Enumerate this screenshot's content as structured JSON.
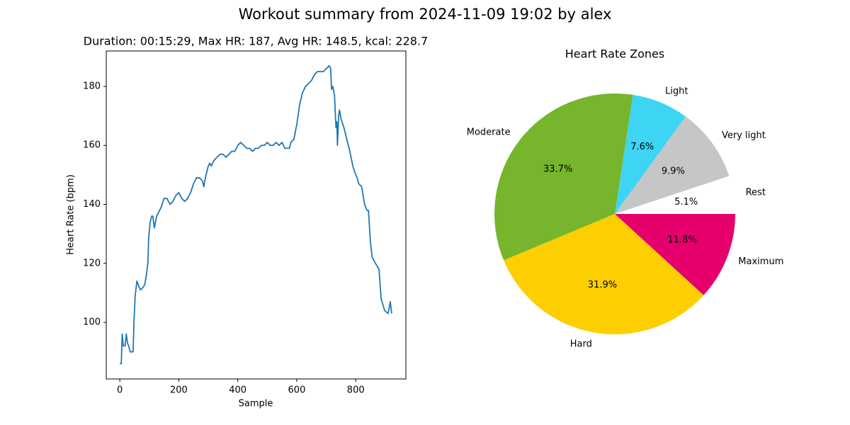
{
  "title": "Workout summary from 2024-11-09 19:02 by alex",
  "chart_data": [
    {
      "type": "line",
      "title": "Duration: 00:15:29, Max HR: 187, Avg HR: 148.5, kcal: 228.7",
      "x_label": "Sample",
      "y_label": "Heart Rate (bpm)",
      "color": "#1f77b4",
      "x": [
        0,
        5,
        8,
        12,
        18,
        22,
        26,
        30,
        35,
        45,
        48,
        52,
        58,
        65,
        70,
        80,
        85,
        90,
        95,
        98,
        103,
        108,
        112,
        117,
        125,
        135,
        140,
        150,
        160,
        170,
        180,
        190,
        200,
        210,
        220,
        230,
        240,
        250,
        260,
        270,
        280,
        285,
        290,
        300,
        305,
        310,
        320,
        330,
        340,
        350,
        360,
        370,
        380,
        390,
        400,
        410,
        420,
        430,
        440,
        450,
        460,
        470,
        480,
        490,
        500,
        510,
        520,
        530,
        540,
        550,
        560,
        575,
        580,
        590,
        600,
        610,
        620,
        630,
        640,
        650,
        660,
        670,
        680,
        690,
        700,
        710,
        715,
        718,
        722,
        728,
        733,
        736,
        738,
        742,
        745,
        750,
        760,
        770,
        780,
        790,
        800,
        805,
        810,
        820,
        825,
        830,
        838,
        843,
        850,
        856,
        867,
        879,
        886,
        898,
        910,
        917,
        922
      ],
      "values": [
        86,
        86,
        96,
        92,
        92,
        96,
        93,
        92,
        90,
        90,
        100,
        109,
        114,
        112,
        111,
        112,
        113,
        116,
        120,
        129,
        134,
        136,
        136,
        132,
        136,
        138,
        139,
        142,
        142,
        140,
        141,
        143,
        144,
        142,
        141,
        142,
        144,
        147,
        149,
        149,
        148,
        146,
        149,
        153,
        154,
        153,
        155,
        156,
        157,
        157,
        156,
        157,
        158,
        158,
        160,
        161,
        160,
        159,
        159,
        158,
        159,
        159,
        160,
        160,
        161,
        160,
        160,
        161,
        160,
        161,
        159,
        159,
        161,
        162,
        167,
        174,
        178,
        180,
        181,
        182,
        184,
        185,
        185,
        185,
        186,
        187,
        186,
        179,
        180,
        177,
        166,
        168,
        160,
        170,
        172,
        169,
        166,
        162,
        158,
        153,
        150,
        149,
        147,
        146,
        143,
        140,
        138,
        138,
        127,
        122,
        120,
        118,
        108,
        104,
        103,
        107,
        103
      ],
      "xlim": [
        -46,
        970
      ],
      "ylim": [
        80.8,
        192
      ],
      "xticks": [
        0,
        200,
        400,
        600,
        800
      ],
      "yticks": [
        100,
        120,
        140,
        160,
        180
      ]
    },
    {
      "type": "pie",
      "title": "Heart Rate Zones",
      "categories": [
        "Rest",
        "Very light",
        "Light",
        "Moderate",
        "Hard",
        "Maximum"
      ],
      "values": [
        5.1,
        9.9,
        7.6,
        33.7,
        31.9,
        11.8
      ],
      "value_labels": [
        "5.1%",
        "9.9%",
        "7.6%",
        "33.7%",
        "31.9%",
        "11.8%"
      ],
      "colors": [
        "#ffffff",
        "#c6c6c6",
        "#3dd5f3",
        "#76b52c",
        "#fecf00",
        "#e6006b"
      ]
    }
  ]
}
